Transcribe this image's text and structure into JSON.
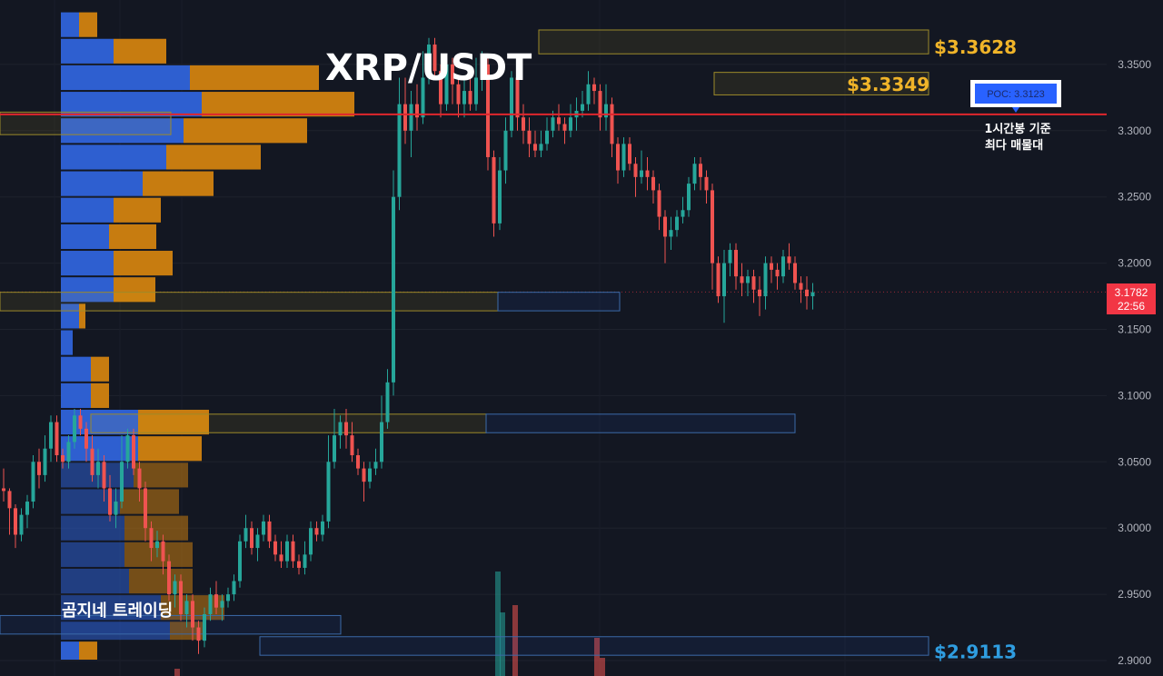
{
  "chart_data": {
    "type": "candlestick",
    "title": "XRP/USDT",
    "watermark": "곰지네 트레이딩",
    "y_ticks": [
      "2.9000",
      "2.9500",
      "3.0000",
      "3.0500",
      "3.1000",
      "3.1500",
      "3.2000",
      "3.2500",
      "3.3000",
      "3.3500"
    ],
    "ylim": [
      2.9,
      3.35
    ],
    "last_price": "3.1782",
    "countdown": "22:56",
    "poc_label": "POC: 3.3123",
    "poc_value": 3.3123,
    "poc_note_line1": "1시간봉 기준",
    "poc_note_line2": "최다 매물대",
    "levels": [
      {
        "label": "$3.3628",
        "value": 3.3628,
        "color": "#f0b429"
      },
      {
        "label": "$3.3349",
        "value": 3.3349,
        "color": "#f0b429"
      },
      {
        "label": "$2.9113",
        "value": 2.9113,
        "color": "#2f9de0"
      }
    ],
    "colors": {
      "up": "#26a69a",
      "down": "#ef5350",
      "poc_line": "#e0262d",
      "bg": "#131722",
      "vp_up": "#2e5fd0",
      "vp_down": "#c77c10"
    },
    "candles": [
      [
        3.03,
        3.028,
        3.045,
        3.02
      ],
      [
        3.028,
        3.015,
        3.03,
        2.995
      ],
      [
        3.015,
        2.995,
        3.018,
        2.985
      ],
      [
        2.995,
        3.01,
        3.015,
        2.99
      ],
      [
        3.01,
        3.02,
        3.025,
        3.0
      ],
      [
        3.02,
        3.05,
        3.055,
        3.015
      ],
      [
        3.05,
        3.04,
        3.06,
        3.03
      ],
      [
        3.04,
        3.06,
        3.07,
        3.035
      ],
      [
        3.06,
        3.08,
        3.085,
        3.05
      ],
      [
        3.08,
        3.055,
        3.085,
        3.05
      ],
      [
        3.055,
        3.05,
        3.06,
        3.045
      ],
      [
        3.05,
        3.065,
        3.07,
        3.045
      ],
      [
        3.065,
        3.085,
        3.09,
        3.06
      ],
      [
        3.085,
        3.075,
        3.09,
        3.07
      ],
      [
        3.075,
        3.06,
        3.08,
        3.05
      ],
      [
        3.06,
        3.04,
        3.07,
        3.035
      ],
      [
        3.04,
        3.05,
        3.06,
        3.03
      ],
      [
        3.05,
        3.03,
        3.055,
        3.02
      ],
      [
        3.03,
        3.01,
        3.04,
        3.005
      ],
      [
        3.01,
        3.02,
        3.03,
        3.0
      ],
      [
        3.02,
        3.05,
        3.07,
        3.015
      ],
      [
        3.05,
        3.07,
        3.075,
        3.045
      ],
      [
        3.07,
        3.045,
        3.075,
        3.04
      ],
      [
        3.045,
        3.03,
        3.05,
        3.02
      ],
      [
        3.03,
        3.0,
        3.035,
        2.99
      ],
      [
        3.0,
        2.985,
        3.005,
        2.975
      ],
      [
        2.985,
        2.99,
        2.998,
        2.978
      ],
      [
        2.99,
        2.975,
        2.995,
        2.965
      ],
      [
        2.975,
        2.95,
        2.98,
        2.945
      ],
      [
        2.95,
        2.96,
        2.965,
        2.94
      ],
      [
        2.96,
        2.935,
        2.965,
        2.93
      ],
      [
        2.935,
        2.945,
        2.95,
        2.925
      ],
      [
        2.945,
        2.925,
        2.95,
        2.915
      ],
      [
        2.925,
        2.915,
        2.93,
        2.905
      ],
      [
        2.915,
        2.935,
        2.94,
        2.91
      ],
      [
        2.935,
        2.95,
        2.955,
        2.93
      ],
      [
        2.95,
        2.94,
        2.96,
        2.935
      ],
      [
        2.94,
        2.945,
        2.95,
        2.93
      ],
      [
        2.945,
        2.95,
        2.955,
        2.94
      ],
      [
        2.95,
        2.96,
        2.965,
        2.945
      ],
      [
        2.96,
        2.99,
        2.995,
        2.955
      ],
      [
        2.99,
        3.0,
        3.01,
        2.985
      ],
      [
        3.0,
        2.985,
        3.005,
        2.98
      ],
      [
        2.985,
        2.995,
        3.0,
        2.975
      ],
      [
        2.995,
        3.005,
        3.01,
        2.99
      ],
      [
        3.005,
        2.99,
        3.01,
        2.985
      ],
      [
        2.99,
        2.98,
        2.995,
        2.975
      ],
      [
        2.98,
        2.975,
        2.99,
        2.97
      ],
      [
        2.975,
        2.99,
        2.995,
        2.97
      ],
      [
        2.99,
        2.975,
        2.995,
        2.97
      ],
      [
        2.975,
        2.97,
        2.98,
        2.965
      ],
      [
        2.97,
        2.98,
        2.99,
        2.965
      ],
      [
        2.98,
        3.0,
        3.005,
        2.975
      ],
      [
        3.0,
        2.995,
        3.005,
        2.99
      ],
      [
        2.995,
        3.005,
        3.01,
        2.99
      ],
      [
        3.005,
        3.05,
        3.07,
        3.0
      ],
      [
        3.05,
        3.07,
        3.09,
        3.045
      ],
      [
        3.07,
        3.08,
        3.085,
        3.06
      ],
      [
        3.08,
        3.07,
        3.09,
        3.06
      ],
      [
        3.07,
        3.055,
        3.08,
        3.05
      ],
      [
        3.055,
        3.045,
        3.06,
        3.04
      ],
      [
        3.045,
        3.035,
        3.05,
        3.02
      ],
      [
        3.035,
        3.045,
        3.05,
        3.03
      ],
      [
        3.045,
        3.05,
        3.06,
        3.04
      ],
      [
        3.05,
        3.08,
        3.1,
        3.045
      ],
      [
        3.08,
        3.11,
        3.12,
        3.075
      ],
      [
        3.11,
        3.25,
        3.27,
        3.1
      ],
      [
        3.25,
        3.32,
        3.34,
        3.24
      ],
      [
        3.32,
        3.3,
        3.34,
        3.29
      ],
      [
        3.3,
        3.32,
        3.33,
        3.28
      ],
      [
        3.32,
        3.31,
        3.335,
        3.3
      ],
      [
        3.31,
        3.34,
        3.36,
        3.305
      ],
      [
        3.34,
        3.365,
        3.37,
        3.335
      ],
      [
        3.365,
        3.345,
        3.37,
        3.34
      ],
      [
        3.345,
        3.32,
        3.35,
        3.31
      ],
      [
        3.32,
        3.35,
        3.358,
        3.315
      ],
      [
        3.35,
        3.335,
        3.355,
        3.32
      ],
      [
        3.335,
        3.32,
        3.34,
        3.31
      ],
      [
        3.32,
        3.33,
        3.34,
        3.31
      ],
      [
        3.33,
        3.32,
        3.345,
        3.315
      ],
      [
        3.32,
        3.34,
        3.355,
        3.315
      ],
      [
        3.34,
        3.35,
        3.36,
        3.33
      ],
      [
        3.35,
        3.28,
        3.355,
        3.27
      ],
      [
        3.28,
        3.23,
        3.285,
        3.22
      ],
      [
        3.23,
        3.27,
        3.28,
        3.225
      ],
      [
        3.27,
        3.3,
        3.31,
        3.26
      ],
      [
        3.3,
        3.34,
        3.345,
        3.295
      ],
      [
        3.34,
        3.31,
        3.345,
        3.3
      ],
      [
        3.31,
        3.3,
        3.32,
        3.29
      ],
      [
        3.3,
        3.29,
        3.31,
        3.28
      ],
      [
        3.29,
        3.285,
        3.3,
        3.28
      ],
      [
        3.285,
        3.29,
        3.3,
        3.28
      ],
      [
        3.29,
        3.3,
        3.31,
        3.285
      ],
      [
        3.3,
        3.31,
        3.315,
        3.295
      ],
      [
        3.31,
        3.305,
        3.32,
        3.3
      ],
      [
        3.305,
        3.3,
        3.31,
        3.29
      ],
      [
        3.3,
        3.31,
        3.32,
        3.295
      ],
      [
        3.31,
        3.315,
        3.325,
        3.3
      ],
      [
        3.315,
        3.32,
        3.33,
        3.31
      ],
      [
        3.32,
        3.335,
        3.345,
        3.315
      ],
      [
        3.335,
        3.33,
        3.34,
        3.32
      ],
      [
        3.33,
        3.31,
        3.335,
        3.3
      ],
      [
        3.31,
        3.32,
        3.335,
        3.3
      ],
      [
        3.32,
        3.29,
        3.325,
        3.28
      ],
      [
        3.29,
        3.27,
        3.295,
        3.26
      ],
      [
        3.27,
        3.29,
        3.295,
        3.265
      ],
      [
        3.29,
        3.275,
        3.295,
        3.27
      ],
      [
        3.275,
        3.265,
        3.28,
        3.25
      ],
      [
        3.265,
        3.27,
        3.285,
        3.26
      ],
      [
        3.27,
        3.265,
        3.28,
        3.255
      ],
      [
        3.265,
        3.255,
        3.27,
        3.245
      ],
      [
        3.255,
        3.235,
        3.26,
        3.225
      ],
      [
        3.235,
        3.22,
        3.24,
        3.2
      ],
      [
        3.22,
        3.225,
        3.235,
        3.21
      ],
      [
        3.225,
        3.235,
        3.24,
        3.22
      ],
      [
        3.235,
        3.24,
        3.25,
        3.23
      ],
      [
        3.24,
        3.26,
        3.265,
        3.235
      ],
      [
        3.26,
        3.275,
        3.28,
        3.255
      ],
      [
        3.275,
        3.265,
        3.28,
        3.255
      ],
      [
        3.265,
        3.255,
        3.27,
        3.245
      ],
      [
        3.255,
        3.2,
        3.26,
        3.18
      ],
      [
        3.2,
        3.175,
        3.205,
        3.17
      ],
      [
        3.175,
        3.2,
        3.21,
        3.155
      ],
      [
        3.2,
        3.21,
        3.215,
        3.19
      ],
      [
        3.21,
        3.19,
        3.215,
        3.18
      ],
      [
        3.19,
        3.185,
        3.2,
        3.175
      ],
      [
        3.185,
        3.19,
        3.195,
        3.175
      ],
      [
        3.19,
        3.18,
        3.195,
        3.17
      ],
      [
        3.18,
        3.175,
        3.19,
        3.16
      ],
      [
        3.175,
        3.2,
        3.205,
        3.165
      ],
      [
        3.2,
        3.195,
        3.205,
        3.185
      ],
      [
        3.195,
        3.19,
        3.2,
        3.18
      ],
      [
        3.19,
        3.205,
        3.21,
        3.185
      ],
      [
        3.205,
        3.2,
        3.215,
        3.195
      ],
      [
        3.2,
        3.185,
        3.205,
        3.18
      ],
      [
        3.185,
        3.18,
        3.19,
        3.17
      ],
      [
        3.18,
        3.175,
        3.19,
        3.165
      ],
      [
        3.175,
        3.178,
        3.185,
        3.165
      ]
    ],
    "volume_profile": [
      {
        "low": 2.9,
        "high": 2.915,
        "up": 20,
        "down": 20
      },
      {
        "low": 2.915,
        "high": 2.93,
        "up": 120,
        "down": 40
      },
      {
        "low": 2.93,
        "high": 2.95,
        "up": 110,
        "down": 70
      },
      {
        "low": 2.95,
        "high": 2.97,
        "up": 75,
        "down": 70
      },
      {
        "low": 2.97,
        "high": 2.99,
        "up": 70,
        "down": 75
      },
      {
        "low": 2.99,
        "high": 3.01,
        "up": 70,
        "down": 70
      },
      {
        "low": 3.01,
        "high": 3.03,
        "up": 65,
        "down": 65
      },
      {
        "low": 3.03,
        "high": 3.05,
        "up": 80,
        "down": 60
      },
      {
        "low": 3.05,
        "high": 3.07,
        "up": 85,
        "down": 70
      },
      {
        "low": 3.07,
        "high": 3.09,
        "up": 85,
        "down": 78
      },
      {
        "low": 3.09,
        "high": 3.11,
        "up": 33,
        "down": 20
      },
      {
        "low": 3.11,
        "high": 3.13,
        "up": 33,
        "down": 20
      },
      {
        "low": 3.13,
        "high": 3.15,
        "up": 13,
        "down": 0
      },
      {
        "low": 3.15,
        "high": 3.17,
        "up": 20,
        "down": 7
      },
      {
        "low": 3.17,
        "high": 3.19,
        "up": 58,
        "down": 46
      },
      {
        "low": 3.19,
        "high": 3.21,
        "up": 58,
        "down": 65
      },
      {
        "low": 3.21,
        "high": 3.23,
        "up": 53,
        "down": 52
      },
      {
        "low": 3.23,
        "high": 3.25,
        "up": 58,
        "down": 52
      },
      {
        "low": 3.25,
        "high": 3.27,
        "up": 90,
        "down": 78
      },
      {
        "low": 3.27,
        "high": 3.29,
        "up": 116,
        "down": 104
      },
      {
        "low": 3.29,
        "high": 3.31,
        "up": 135,
        "down": 136
      },
      {
        "low": 3.31,
        "high": 3.33,
        "up": 155,
        "down": 168
      },
      {
        "low": 3.33,
        "high": 3.35,
        "up": 142,
        "down": 142
      },
      {
        "low": 3.35,
        "high": 3.37,
        "up": 58,
        "down": 58
      },
      {
        "low": 3.37,
        "high": 3.39,
        "up": 20,
        "down": 20
      }
    ],
    "zones": [
      {
        "low": 3.358,
        "high": 3.376,
        "x1": 593,
        "x2": 1022,
        "style": "yellow"
      },
      {
        "low": 3.327,
        "high": 3.344,
        "x1": 786,
        "x2": 1022,
        "style": "yellow"
      },
      {
        "low": 3.297,
        "high": 3.314,
        "x1": 0,
        "x2": 188,
        "style": "yellow"
      },
      {
        "low": 3.164,
        "high": 3.178,
        "x1": 0,
        "x2": 548,
        "style": "yellow"
      },
      {
        "low": 3.164,
        "high": 3.178,
        "x1": 548,
        "x2": 682,
        "style": "blue"
      },
      {
        "low": 3.072,
        "high": 3.086,
        "x1": 100,
        "x2": 535,
        "style": "yellow"
      },
      {
        "low": 3.072,
        "high": 3.086,
        "x1": 535,
        "x2": 875,
        "style": "blue"
      },
      {
        "low": 2.92,
        "high": 2.934,
        "x1": 0,
        "x2": 375,
        "style": "blue"
      },
      {
        "low": 2.904,
        "high": 2.918,
        "x1": 286,
        "x2": 1022,
        "style": "blue"
      }
    ],
    "volume_bars": [
      {
        "x": 548,
        "h": 115,
        "dir": "up"
      },
      {
        "x": 553,
        "h": 70,
        "dir": "up"
      },
      {
        "x": 567,
        "h": 78,
        "dir": "down"
      },
      {
        "x": 657,
        "h": 42,
        "dir": "down"
      },
      {
        "x": 663,
        "h": 20,
        "dir": "down"
      },
      {
        "x": 195,
        "h": 8,
        "dir": "down"
      }
    ]
  }
}
